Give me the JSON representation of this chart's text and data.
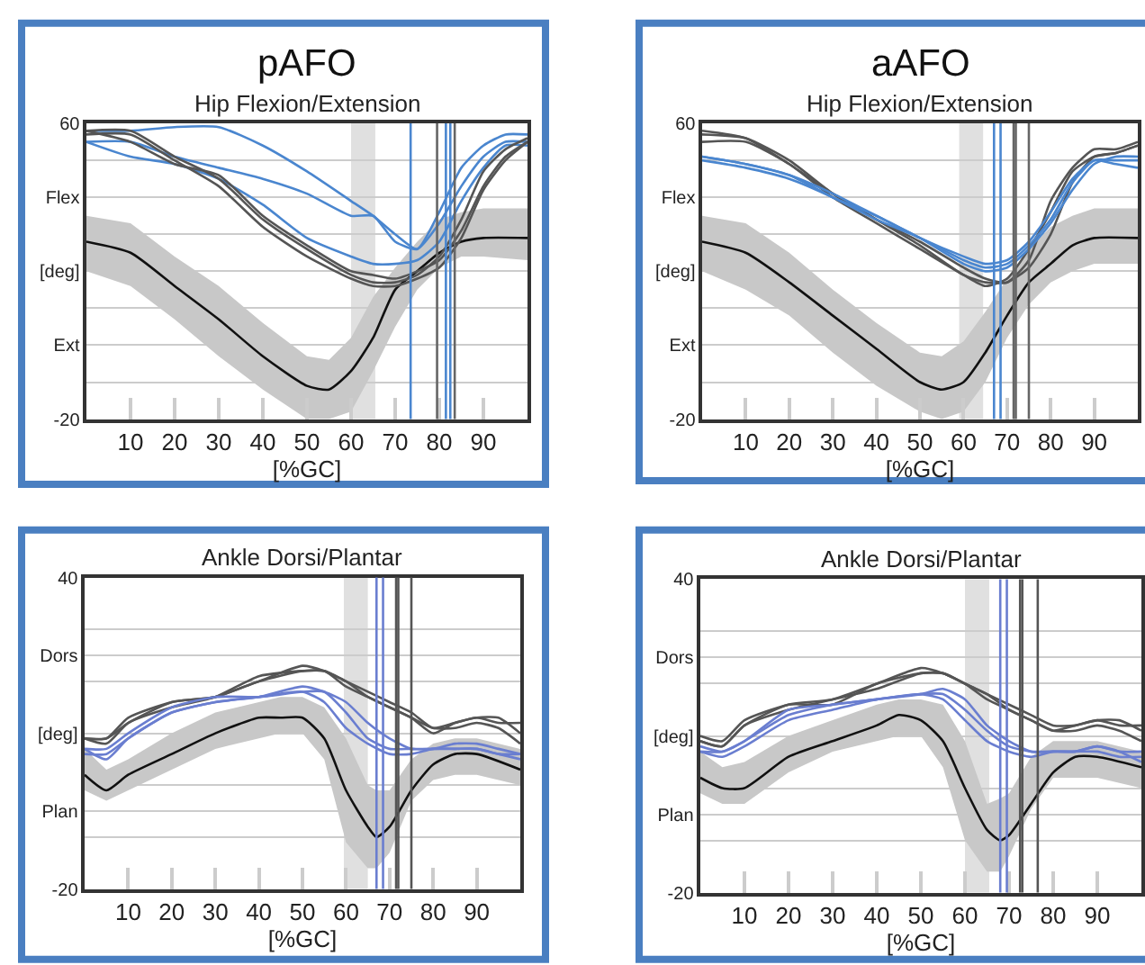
{
  "chart_data": [
    {
      "type": "line",
      "title": "pAFO",
      "subtitle": "Hip Flexion/Extension",
      "xlabel": "[%GC]",
      "xlim": [
        0,
        100
      ],
      "xticks": [
        10,
        20,
        30,
        40,
        50,
        60,
        70,
        80,
        90
      ],
      "ylim": [
        -20,
        60
      ],
      "yticks": [
        60,
        {
          "value": 50,
          "label": null
        },
        {
          "value": 40,
          "label": "Flex"
        },
        {
          "value": 30,
          "label": null
        },
        {
          "value": 20,
          "label": "[deg]"
        },
        {
          "value": 10,
          "label": null
        },
        {
          "value": 0,
          "label": "Ext"
        },
        {
          "value": -10,
          "label": null
        },
        -20
      ],
      "grid": "y",
      "marker": "none",
      "line_style": "solid",
      "series": [
        {
          "color": "#111111",
          "x": [
            0,
            10,
            20,
            30,
            40,
            50,
            55,
            60,
            65,
            70,
            75,
            80,
            85,
            90,
            100
          ],
          "values": [
            28,
            25,
            16,
            7,
            -3,
            -11,
            -12,
            -7,
            2,
            15,
            20,
            25,
            28,
            29,
            29
          ],
          "lower": [
            20,
            16,
            7,
            -3,
            -12,
            -20,
            -20,
            -18,
            -7,
            5,
            15,
            21,
            24,
            24,
            23
          ],
          "upper": [
            35,
            33,
            24,
            16,
            6,
            -3,
            -4,
            2,
            13,
            21,
            28,
            34,
            36,
            37,
            37
          ]
        },
        {
          "color": "#4a86cf",
          "x": [
            0,
            10,
            20,
            30,
            40,
            50,
            60,
            65,
            70,
            75,
            80,
            85,
            90,
            95,
            100
          ],
          "values": [
            58,
            58,
            59,
            59,
            54,
            47,
            39,
            35,
            30,
            26,
            36,
            48,
            54,
            57,
            57
          ]
        },
        {
          "color": "#4a86cf",
          "x": [
            0,
            10,
            20,
            30,
            40,
            50,
            60,
            65,
            70,
            75,
            80,
            85,
            90,
            95,
            100
          ],
          "values": [
            55,
            55,
            51,
            48,
            45,
            41,
            35,
            35,
            28,
            26,
            33,
            43,
            51,
            55,
            55
          ]
        },
        {
          "color": "#4a86cf",
          "x": [
            0,
            10,
            20,
            30,
            40,
            50,
            60,
            65,
            70,
            75,
            80,
            85,
            90,
            95,
            100
          ],
          "values": [
            55,
            51,
            49,
            45,
            38,
            29,
            24,
            22,
            22,
            23,
            28,
            39,
            48,
            54,
            54
          ]
        },
        {
          "color": "#555555",
          "x": [
            0,
            10,
            20,
            30,
            40,
            50,
            60,
            65,
            70,
            75,
            80,
            85,
            90,
            95,
            100
          ],
          "values": [
            58,
            58,
            51,
            45,
            34,
            26,
            19,
            17,
            17,
            19,
            24,
            34,
            47,
            53,
            56
          ]
        },
        {
          "color": "#555555",
          "x": [
            0,
            10,
            20,
            30,
            40,
            50,
            60,
            65,
            70,
            75,
            80,
            85,
            90,
            95,
            100
          ],
          "values": [
            57,
            57,
            50,
            43,
            32,
            24,
            18,
            16,
            16,
            18,
            21,
            29,
            42,
            50,
            55
          ]
        },
        {
          "color": "#555555",
          "x": [
            0,
            10,
            20,
            30,
            40,
            50,
            60,
            65,
            70,
            75,
            80,
            85,
            90,
            95,
            100
          ],
          "values": [
            58,
            55,
            49,
            46,
            35,
            27,
            20,
            19,
            18,
            20,
            23,
            31,
            43,
            51,
            55
          ]
        }
      ],
      "ref_lines": [
        {
          "axis": "x",
          "value": 73.5,
          "color": "#4a86cf"
        },
        {
          "axis": "x",
          "value": 79.5,
          "color": "#666666"
        },
        {
          "axis": "x",
          "value": 81.5,
          "color": "#4a86cf"
        },
        {
          "axis": "x",
          "value": 82.5,
          "color": "#4a86cf"
        },
        {
          "axis": "x",
          "value": 83.5,
          "color": "#666666"
        }
      ],
      "bands": [
        {
          "axis": "x",
          "from": 60,
          "to": 65.5,
          "color": "#e0e0e0"
        }
      ]
    },
    {
      "type": "line",
      "title": "aAFO",
      "subtitle": "Hip Flexion/Extension",
      "xlabel": "[%GC]",
      "xlim": [
        0,
        100
      ],
      "xticks": [
        10,
        20,
        30,
        40,
        50,
        60,
        70,
        80,
        90
      ],
      "ylim": [
        -20,
        60
      ],
      "yticks": [
        60,
        {
          "value": 50,
          "label": null
        },
        {
          "value": 40,
          "label": "Flex"
        },
        {
          "value": 30,
          "label": null
        },
        {
          "value": 20,
          "label": "[deg]"
        },
        {
          "value": 10,
          "label": null
        },
        {
          "value": 0,
          "label": "Ext"
        },
        {
          "value": -10,
          "label": null
        },
        -20
      ],
      "grid": "y",
      "marker": "none",
      "line_style": "solid",
      "series": [
        {
          "color": "#111111",
          "x": [
            0,
            10,
            20,
            30,
            40,
            50,
            55,
            60,
            65,
            70,
            75,
            80,
            85,
            90,
            100
          ],
          "values": [
            28,
            25,
            17,
            8,
            -1,
            -10,
            -12,
            -10,
            -2,
            8,
            17,
            22,
            27,
            29,
            29
          ],
          "lower": [
            20,
            15,
            8,
            -2,
            -11,
            -18,
            -20,
            -18,
            -10,
            2,
            11,
            17,
            20,
            22,
            22
          ],
          "upper": [
            35,
            33,
            25,
            15,
            6,
            -2,
            -3,
            1,
            9,
            18,
            26,
            32,
            35,
            37,
            37
          ]
        },
        {
          "color": "#555555",
          "x": [
            0,
            10,
            20,
            30,
            40,
            50,
            60,
            65,
            70,
            75,
            80,
            85,
            90,
            95,
            100
          ],
          "values": [
            57,
            56,
            50,
            41,
            34,
            28,
            21,
            18,
            17,
            23,
            39,
            48,
            53,
            53,
            55
          ]
        },
        {
          "color": "#555555",
          "x": [
            0,
            10,
            20,
            30,
            40,
            50,
            60,
            65,
            70,
            75,
            80,
            85,
            90,
            95,
            100
          ],
          "values": [
            55,
            55,
            49,
            40,
            33,
            26,
            19,
            16,
            18,
            26,
            36,
            47,
            51,
            52,
            54
          ]
        },
        {
          "color": "#555555",
          "x": [
            0,
            10,
            20,
            30,
            40,
            50,
            60,
            65,
            70,
            75,
            80,
            85,
            90,
            95,
            100
          ],
          "values": [
            58,
            56,
            49,
            41,
            34,
            27,
            19,
            17,
            17,
            21,
            30,
            44,
            51,
            52,
            54
          ]
        },
        {
          "color": "#4a86cf",
          "x": [
            0,
            10,
            20,
            30,
            40,
            50,
            60,
            65,
            70,
            75,
            80,
            85,
            90,
            95,
            100
          ],
          "values": [
            51,
            49,
            46,
            40,
            35,
            29,
            24,
            22,
            23,
            28,
            36,
            45,
            50,
            49,
            48
          ]
        },
        {
          "color": "#4a86cf",
          "x": [
            0,
            10,
            20,
            30,
            40,
            50,
            60,
            65,
            70,
            75,
            80,
            85,
            90,
            95,
            100
          ],
          "values": [
            50,
            48,
            45,
            40,
            34,
            29,
            23,
            21,
            22,
            27,
            34,
            44,
            50,
            50,
            50
          ]
        },
        {
          "color": "#4a86cf",
          "x": [
            0,
            10,
            20,
            30,
            40,
            50,
            60,
            65,
            70,
            75,
            80,
            85,
            90,
            95,
            100
          ],
          "values": [
            51,
            49,
            46,
            41,
            35,
            29,
            22,
            20,
            21,
            26,
            33,
            42,
            49,
            51,
            51
          ]
        }
      ],
      "ref_lines": [
        {
          "axis": "x",
          "value": 67,
          "color": "#4a86cf"
        },
        {
          "axis": "x",
          "value": 68.5,
          "color": "#4a86cf"
        },
        {
          "axis": "x",
          "value": 71.5,
          "color": "#666666"
        },
        {
          "axis": "x",
          "value": 72,
          "color": "#666666"
        },
        {
          "axis": "x",
          "value": 75,
          "color": "#666666"
        }
      ],
      "bands": [
        {
          "axis": "x",
          "from": 59,
          "to": 64.5,
          "color": "#e0e0e0"
        }
      ]
    },
    {
      "type": "line",
      "title": "Ankle Dorsi/Plantar",
      "xlabel": "[%GC]",
      "xlim": [
        0,
        100
      ],
      "xticks": [
        10,
        20,
        30,
        40,
        50,
        60,
        70,
        80,
        90
      ],
      "ylim": [
        -20,
        40
      ],
      "yticks": [
        40,
        {
          "value": 30,
          "label": null
        },
        {
          "value": 25,
          "label": "Dors"
        },
        {
          "value": 20,
          "label": null
        },
        {
          "value": 10,
          "label": "[deg]"
        },
        {
          "value": 0,
          "label": null
        },
        {
          "value": -5,
          "label": "Plan"
        },
        {
          "value": -10,
          "label": null
        },
        -20
      ],
      "grid": "y",
      "marker": "none",
      "line_style": "solid",
      "series": [
        {
          "color": "#111111",
          "x": [
            0,
            5,
            10,
            20,
            30,
            40,
            45,
            50,
            55,
            60,
            65,
            67,
            70,
            75,
            80,
            85,
            90,
            100
          ],
          "values": [
            2,
            -1,
            2,
            6,
            10,
            13,
            13,
            13,
            9,
            -1,
            -8,
            -10,
            -8,
            -1,
            4,
            6,
            6,
            3
          ],
          "lower": [
            -1,
            -3,
            -1,
            3,
            7,
            9,
            10,
            10,
            5,
            -11,
            -16,
            -16,
            -13,
            -3,
            1,
            2,
            2,
            0
          ],
          "upper": [
            7,
            3,
            5,
            10,
            14,
            16,
            17,
            17,
            15,
            9,
            0,
            -1,
            -1,
            5,
            8,
            9,
            9,
            7
          ]
        },
        {
          "color": "#555555",
          "x": [
            0,
            5,
            10,
            20,
            30,
            40,
            50,
            55,
            60,
            65,
            70,
            75,
            80,
            85,
            90,
            95,
            100
          ],
          "values": [
            9,
            9,
            13,
            16,
            17,
            20,
            22,
            22,
            20,
            18,
            16,
            14,
            11,
            12,
            13,
            12,
            12
          ]
        },
        {
          "color": "#555555",
          "x": [
            0,
            5,
            10,
            20,
            30,
            40,
            50,
            55,
            60,
            65,
            70,
            75,
            80,
            85,
            90,
            95,
            100
          ],
          "values": [
            9,
            8,
            12,
            15,
            17,
            21,
            22,
            22,
            19,
            17,
            15,
            13,
            11,
            11,
            12,
            11,
            8
          ]
        },
        {
          "color": "#555555",
          "x": [
            0,
            5,
            10,
            20,
            30,
            40,
            50,
            55,
            60,
            65,
            70,
            75,
            80,
            85,
            90,
            95,
            100
          ],
          "values": [
            9,
            9,
            12,
            16,
            17,
            20,
            23,
            22,
            20,
            17,
            15,
            13,
            10,
            12,
            13,
            13,
            10
          ]
        },
        {
          "color": "#6a7ed0",
          "x": [
            0,
            5,
            10,
            20,
            30,
            40,
            50,
            55,
            60,
            65,
            70,
            75,
            80,
            85,
            90,
            95,
            100
          ],
          "values": [
            7,
            7,
            10,
            15,
            17,
            17,
            18,
            18,
            14,
            9,
            7,
            7,
            7,
            8,
            8,
            7,
            6
          ]
        },
        {
          "color": "#6a7ed0",
          "x": [
            0,
            5,
            10,
            20,
            30,
            40,
            50,
            55,
            60,
            65,
            70,
            75,
            80,
            85,
            90,
            95,
            100
          ],
          "values": [
            7,
            5,
            9,
            14,
            16,
            17,
            19,
            18,
            16,
            12,
            9,
            7,
            7,
            7,
            7,
            6,
            5
          ]
        },
        {
          "color": "#6a7ed0",
          "x": [
            0,
            5,
            10,
            20,
            30,
            40,
            50,
            55,
            60,
            65,
            70,
            75,
            80,
            85,
            90,
            95,
            100
          ],
          "values": [
            6,
            6,
            9,
            14,
            16,
            17,
            18,
            16,
            11,
            8,
            6,
            6,
            7,
            7,
            7,
            6,
            6
          ]
        }
      ],
      "ref_lines": [
        {
          "axis": "x",
          "value": 67,
          "color": "#6a7ed0"
        },
        {
          "axis": "x",
          "value": 68.5,
          "color": "#6a7ed0"
        },
        {
          "axis": "x",
          "value": 71.5,
          "color": "#555555"
        },
        {
          "axis": "x",
          "value": 72,
          "color": "#555555"
        },
        {
          "axis": "x",
          "value": 75,
          "color": "#555555"
        }
      ],
      "bands": [
        {
          "axis": "x",
          "from": 59.5,
          "to": 65,
          "color": "#e0e0e0"
        }
      ]
    },
    {
      "type": "line",
      "title": "Ankle Dorsi/Plantar",
      "xlabel": "[%GC]",
      "xlim": [
        0,
        100
      ],
      "xticks": [
        10,
        20,
        30,
        40,
        50,
        60,
        70,
        80,
        90
      ],
      "ylim": [
        -20,
        40
      ],
      "yticks": [
        40,
        {
          "value": 30,
          "label": null
        },
        {
          "value": 25,
          "label": "Dors"
        },
        {
          "value": 20,
          "label": null
        },
        {
          "value": 10,
          "label": "[deg]"
        },
        {
          "value": 0,
          "label": null
        },
        {
          "value": -5,
          "label": "Plan"
        },
        {
          "value": -10,
          "label": null
        },
        -20
      ],
      "grid": "y",
      "marker": "none",
      "line_style": "solid",
      "series": [
        {
          "color": "#111111",
          "x": [
            0,
            5,
            10,
            20,
            30,
            40,
            45,
            50,
            55,
            60,
            65,
            68,
            70,
            75,
            80,
            85,
            90,
            100
          ],
          "values": [
            2,
            0,
            0,
            6,
            9,
            12,
            14,
            13,
            9,
            0,
            -8,
            -10,
            -9,
            -3,
            3,
            6,
            6,
            4
          ],
          "lower": [
            -1,
            -3,
            -3,
            3,
            7,
            9,
            10,
            10,
            4,
            -10,
            -16,
            -16,
            -13,
            -4,
            2,
            2,
            2,
            0
          ],
          "upper": [
            7,
            4,
            5,
            10,
            13,
            16,
            17,
            17,
            16,
            9,
            -3,
            -2,
            -1,
            6,
            9,
            9,
            9,
            7
          ]
        },
        {
          "color": "#555555",
          "x": [
            0,
            5,
            10,
            20,
            30,
            40,
            50,
            55,
            60,
            65,
            70,
            75,
            80,
            85,
            90,
            95,
            100
          ],
          "values": [
            9,
            8,
            12,
            16,
            16,
            20,
            22,
            22,
            20,
            18,
            16,
            14,
            12,
            12,
            13,
            12,
            12
          ]
        },
        {
          "color": "#555555",
          "x": [
            0,
            5,
            10,
            20,
            30,
            40,
            50,
            55,
            60,
            65,
            70,
            75,
            80,
            85,
            90,
            95,
            100
          ],
          "values": [
            9,
            8,
            12,
            15,
            17,
            19,
            22,
            22,
            20,
            17,
            15,
            13,
            11,
            11,
            12,
            11,
            9
          ]
        },
        {
          "color": "#555555",
          "x": [
            0,
            5,
            10,
            20,
            30,
            40,
            50,
            55,
            60,
            65,
            70,
            75,
            80,
            85,
            90,
            95,
            100
          ],
          "values": [
            10,
            9,
            13,
            16,
            17,
            20,
            23,
            22,
            20,
            18,
            15,
            13,
            11,
            12,
            13,
            13,
            11
          ]
        },
        {
          "color": "#6a7ed0",
          "x": [
            0,
            5,
            10,
            20,
            30,
            40,
            50,
            55,
            60,
            65,
            70,
            75,
            80,
            85,
            90,
            95,
            100
          ],
          "values": [
            7,
            7,
            9,
            14,
            16,
            17,
            18,
            19,
            17,
            12,
            9,
            7,
            7,
            7,
            8,
            7,
            7
          ]
        },
        {
          "color": "#6a7ed0",
          "x": [
            0,
            5,
            10,
            20,
            30,
            40,
            50,
            55,
            60,
            65,
            70,
            75,
            80,
            85,
            90,
            95,
            100
          ],
          "values": [
            7,
            6,
            8,
            13,
            15,
            17,
            18,
            18,
            15,
            11,
            8,
            7,
            7,
            7,
            7,
            6,
            6
          ]
        },
        {
          "color": "#6a7ed0",
          "x": [
            0,
            5,
            10,
            20,
            30,
            40,
            50,
            55,
            60,
            65,
            70,
            75,
            80,
            85,
            90,
            95,
            100
          ],
          "values": [
            8,
            7,
            9,
            15,
            16,
            17,
            18,
            17,
            13,
            9,
            7,
            6,
            7,
            7,
            8,
            7,
            5
          ]
        }
      ],
      "ref_lines": [
        {
          "axis": "x",
          "value": 68,
          "color": "#6a7ed0"
        },
        {
          "axis": "x",
          "value": 69.5,
          "color": "#6a7ed0"
        },
        {
          "axis": "x",
          "value": 72.5,
          "color": "#555555"
        },
        {
          "axis": "x",
          "value": 73,
          "color": "#555555"
        },
        {
          "axis": "x",
          "value": 76.5,
          "color": "#555555"
        }
      ],
      "bands": [
        {
          "axis": "x",
          "from": 60,
          "to": 65.5,
          "color": "#e0e0e0"
        }
      ]
    }
  ]
}
